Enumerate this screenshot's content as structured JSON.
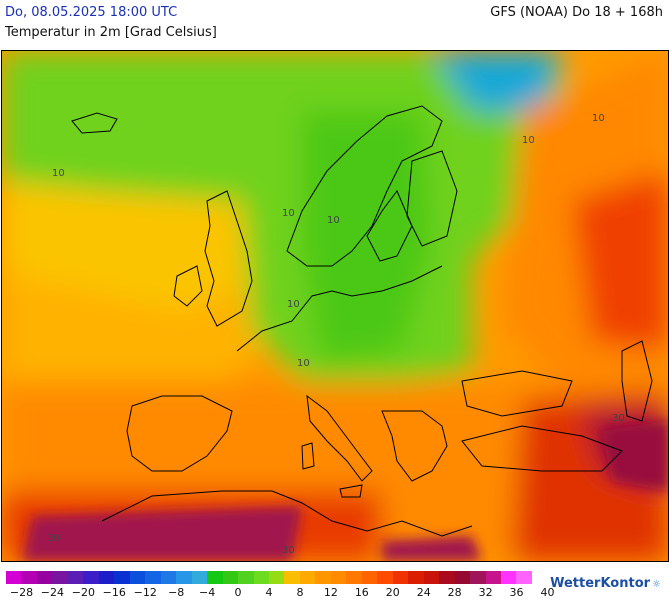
{
  "header": {
    "datetime": "Do, 08.05.2025 18:00 UTC",
    "model": "GFS (NOAA) Do 18 + 168h",
    "parameter": "Temperatur in 2m [Grad Celsius]"
  },
  "map": {
    "contour_labels": [
      "10",
      "10",
      "10",
      "10",
      "10",
      "10",
      "10",
      "30",
      "30",
      "30"
    ]
  },
  "legend": {
    "colors": [
      "#d200d2",
      "#b400b4",
      "#9600a0",
      "#7814a0",
      "#5a1eb4",
      "#3c1ec8",
      "#1e1ec8",
      "#0a32d2",
      "#0a50dc",
      "#1464e6",
      "#1e78e6",
      "#2896e6",
      "#32aadc",
      "#14c814",
      "#32c814",
      "#50d21e",
      "#6edc1e",
      "#96dc14",
      "#fabe00",
      "#ffaa00",
      "#ff9600",
      "#ff8c00",
      "#ff7800",
      "#ff6400",
      "#ff4b00",
      "#f03200",
      "#dc1e00",
      "#c8140a",
      "#aa0a1e",
      "#960a32",
      "#a0145a",
      "#c8148c",
      "#ff32ff",
      "#ff64ff"
    ],
    "ticks": [
      "−28",
      "−24",
      "−20",
      "−16",
      "−12",
      "−8",
      "−4",
      "0",
      "4",
      "8",
      "12",
      "16",
      "20",
      "24",
      "28",
      "32",
      "36",
      "40"
    ]
  },
  "branding": {
    "logo_text": "WetterKontor"
  }
}
